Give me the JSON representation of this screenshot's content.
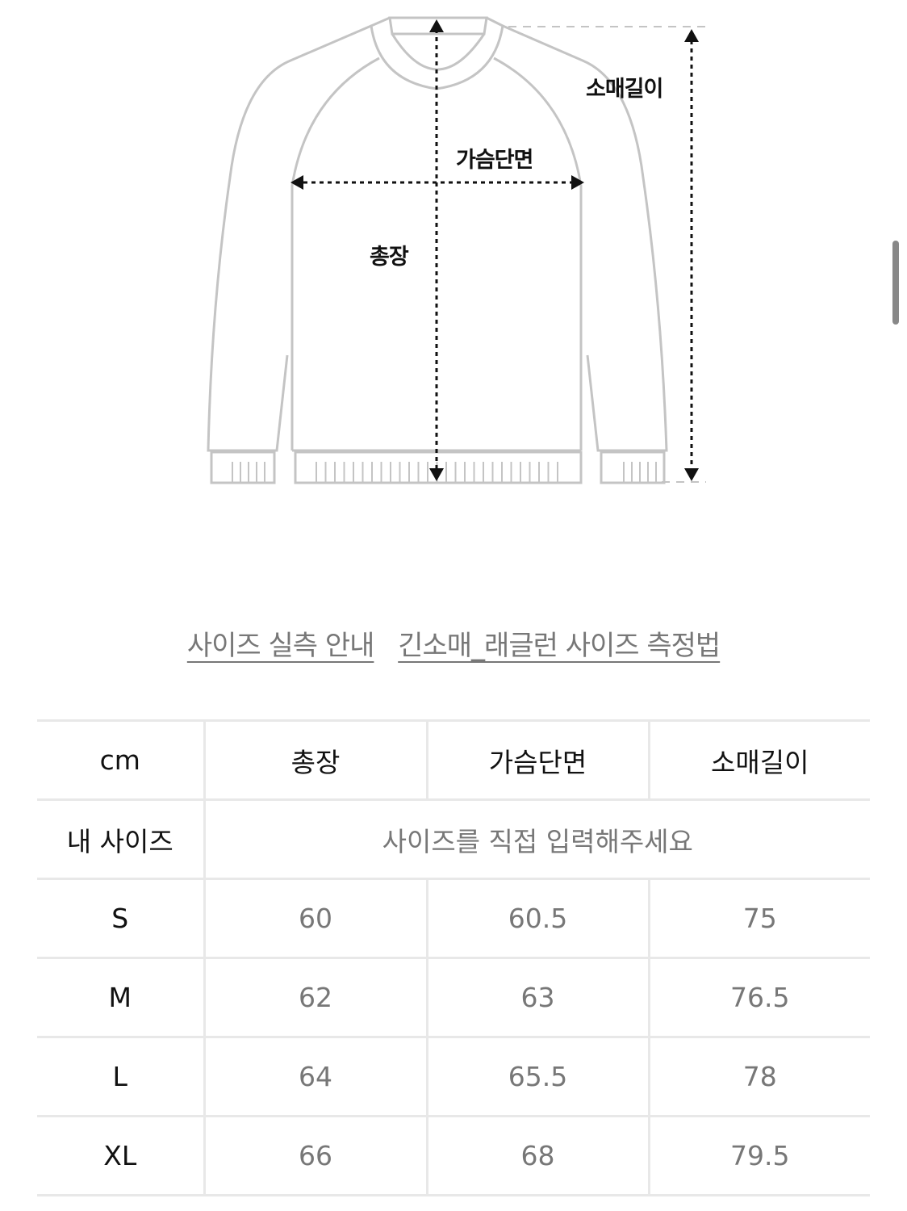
{
  "diagram": {
    "labels": {
      "sleeve": "소매길이",
      "chest": "가슴단면",
      "length": "총장"
    }
  },
  "links": [
    {
      "label": "사이즈 실측 안내"
    },
    {
      "label": "긴소매_래글런 사이즈 측정법"
    }
  ],
  "table": {
    "headers": [
      "cm",
      "총장",
      "가슴단면",
      "소매길이"
    ],
    "my_size": {
      "label": "내 사이즈",
      "placeholder": "사이즈를 직접 입력해주세요"
    },
    "rows": [
      {
        "size": "S",
        "values": [
          "60",
          "60.5",
          "75"
        ]
      },
      {
        "size": "M",
        "values": [
          "62",
          "63",
          "76.5"
        ]
      },
      {
        "size": "L",
        "values": [
          "64",
          "65.5",
          "78"
        ]
      },
      {
        "size": "XL",
        "values": [
          "66",
          "68",
          "79.5"
        ]
      }
    ]
  }
}
